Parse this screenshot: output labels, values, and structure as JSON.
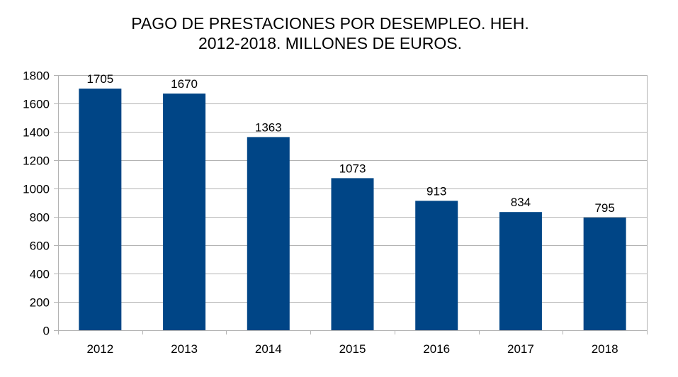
{
  "chart_data": {
    "type": "bar",
    "title_lines": [
      "PAGO DE PRESTACIONES POR DESEMPLEO. HEH.",
      "2012-2018. MILLONES DE EUROS."
    ],
    "categories": [
      "2012",
      "2013",
      "2014",
      "2015",
      "2016",
      "2017",
      "2018"
    ],
    "values": [
      1705,
      1670,
      1363,
      1073,
      913,
      834,
      795
    ],
    "data_labels": [
      "1705",
      "1670",
      "1363",
      "1073",
      "913",
      "834",
      "795"
    ],
    "ylim": [
      0,
      1800
    ],
    "yticks": [
      0,
      200,
      400,
      600,
      800,
      1000,
      1200,
      1400,
      1600,
      1800
    ],
    "grid": true,
    "legend": "none",
    "bar_color": "#004586"
  }
}
